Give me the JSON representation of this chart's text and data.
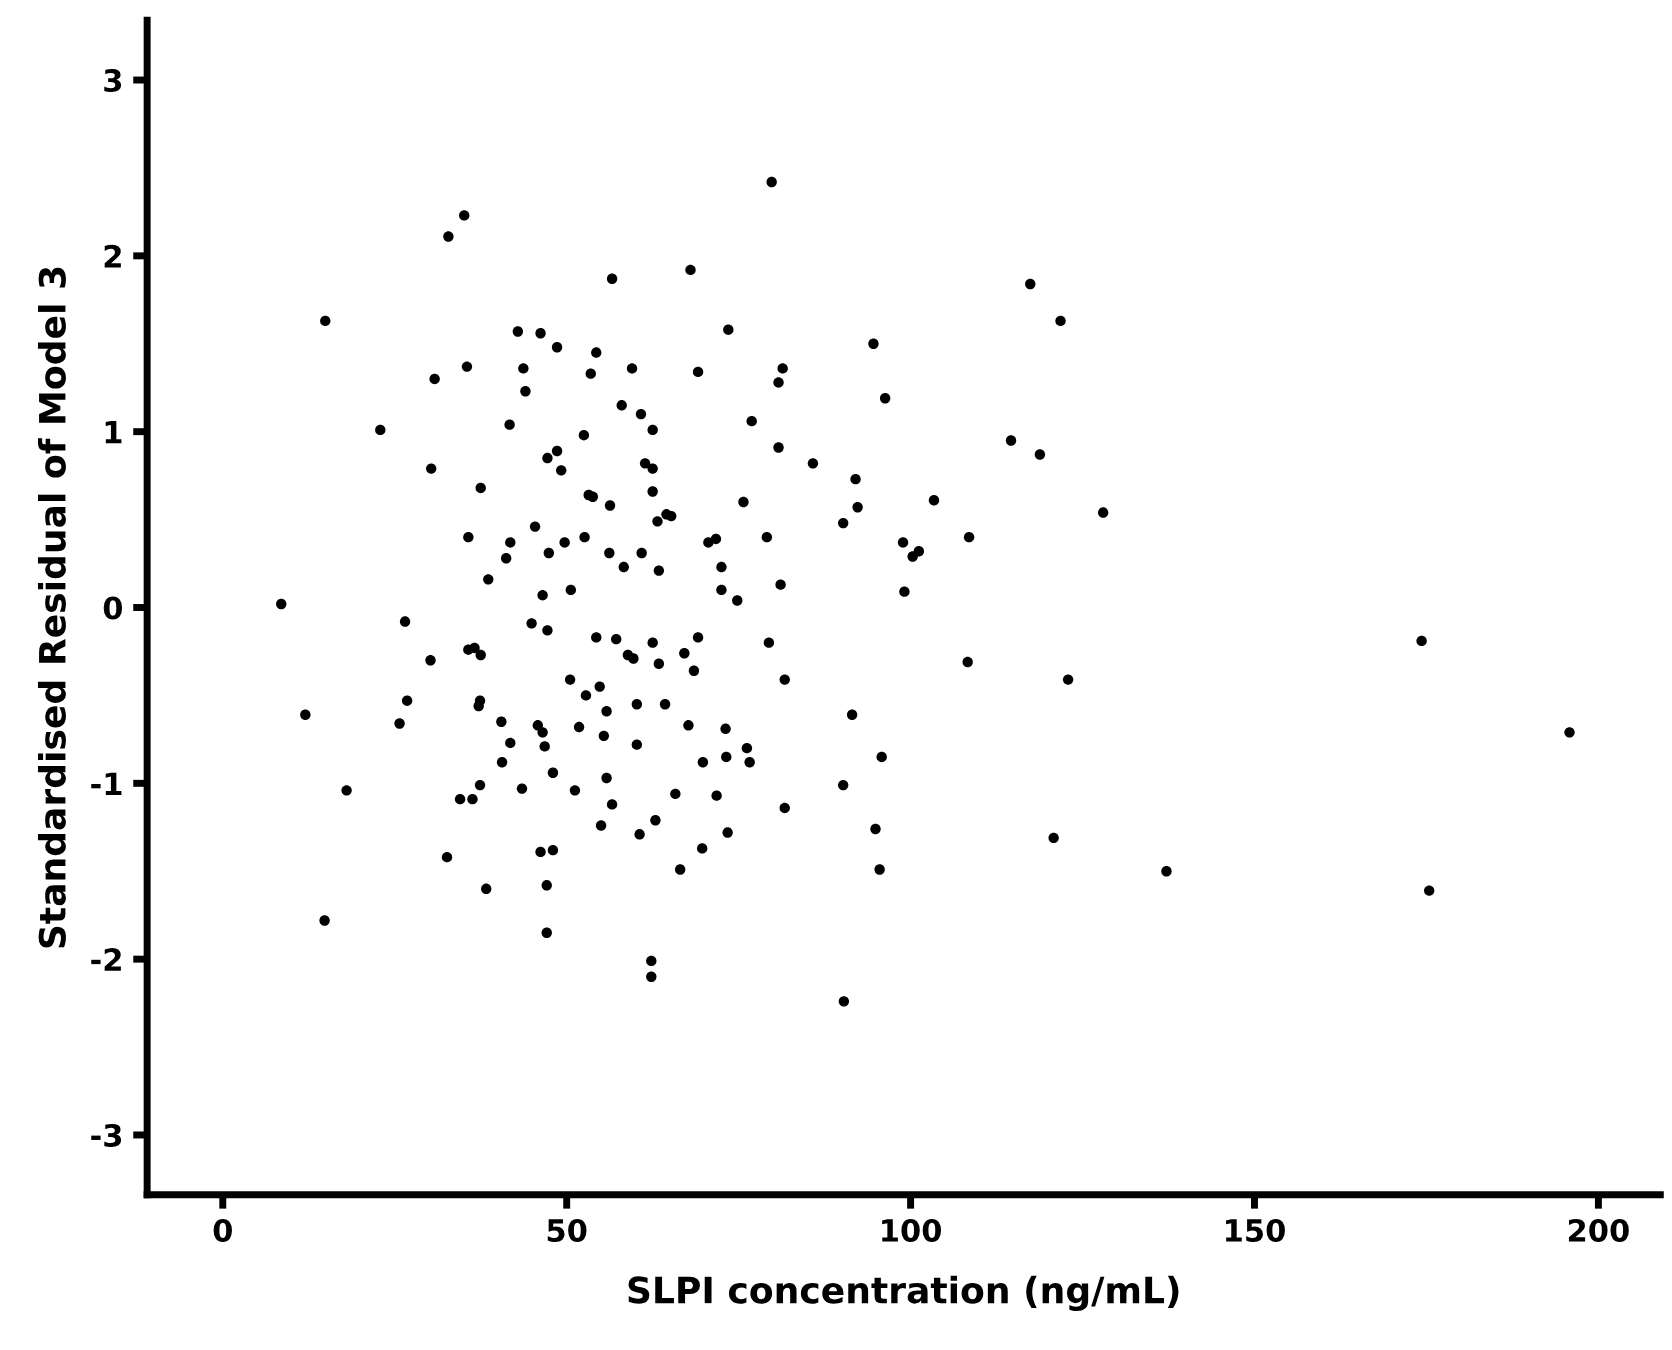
{
  "chart_data": {
    "type": "scatter",
    "xlabel": "SLPI concentration (ng/mL)",
    "ylabel": "Standardised Residual of Model 3",
    "xlim": [
      -11,
      209
    ],
    "ylim": [
      -3.34,
      3.34
    ],
    "xticks": [
      0,
      50,
      100,
      150,
      200
    ],
    "yticks": [
      -3,
      -2,
      -1,
      0,
      1,
      2,
      3
    ],
    "grid": false,
    "legend": false,
    "marker": "circle",
    "series": [
      {
        "color": "#000000",
        "x": [
          8.5,
          12.0,
          14.9,
          14.8,
          18.0,
          22.9,
          26.5,
          26.8,
          25.7,
          30.2,
          30.3,
          30.8,
          32.6,
          32.8,
          35.1,
          34.5,
          36.3,
          35.5,
          35.7,
          37.5,
          35.7,
          36.6,
          37.5,
          37.4,
          37.2,
          37.4,
          38.3,
          38.6,
          40.5,
          40.6,
          41.7,
          41.8,
          41.8,
          41.2,
          42.9,
          43.7,
          44.0,
          43.5,
          44.9,
          45.4,
          46.2,
          45.8,
          46.5,
          46.8,
          46.5,
          47.2,
          47.2,
          47.4,
          47.1,
          47.1,
          46.2,
          48.0,
          48.0,
          48.6,
          48.6,
          49.2,
          49.7,
          50.6,
          50.5,
          51.2,
          51.8,
          52.5,
          52.6,
          52.8,
          53.2,
          53.8,
          53.5,
          54.3,
          54.3,
          54.8,
          55.0,
          55.4,
          55.8,
          56.2,
          56.3,
          55.8,
          56.6,
          56.6,
          57.2,
          58.0,
          58.3,
          58.9,
          59.7,
          59.5,
          60.2,
          60.2,
          60.9,
          60.6,
          60.8,
          61.4,
          62.5,
          62.5,
          62.5,
          62.5,
          62.9,
          62.3,
          62.3,
          63.4,
          63.4,
          63.2,
          64.5,
          64.3,
          65.2,
          65.8,
          66.5,
          67.1,
          67.7,
          68.0,
          68.5,
          69.1,
          69.1,
          69.7,
          69.8,
          70.6,
          71.7,
          71.8,
          72.5,
          72.5,
          73.1,
          73.4,
          73.5,
          73.2,
          74.8,
          75.7,
          76.2,
          76.6,
          76.9,
          79.1,
          79.4,
          79.8,
          80.8,
          80.8,
          81.4,
          81.1,
          81.7,
          81.7,
          85.8,
          90.2,
          90.2,
          90.3,
          91.5,
          92.0,
          92.3,
          94.6,
          94.9,
          95.5,
          95.8,
          96.3,
          98.9,
          99.1,
          100.3,
          101.2,
          103.4,
          108.3,
          108.5,
          114.6,
          117.4,
          118.8,
          120.8,
          121.8,
          122.9,
          128.0,
          137.2,
          174.3,
          175.4,
          195.8
        ],
        "values": [
          0.02,
          -0.61,
          1.63,
          -1.78,
          -1.04,
          1.01,
          -0.08,
          -0.53,
          -0.66,
          -0.3,
          0.79,
          1.3,
          -1.42,
          2.11,
          2.23,
          -1.09,
          -1.09,
          1.37,
          0.4,
          0.68,
          -0.24,
          -0.23,
          -0.27,
          -0.53,
          -0.56,
          -1.01,
          -1.6,
          0.16,
          -0.65,
          -0.88,
          1.04,
          -0.77,
          0.37,
          0.28,
          1.57,
          1.36,
          1.23,
          -1.03,
          -0.09,
          0.46,
          1.56,
          -0.67,
          -0.71,
          -0.79,
          0.07,
          -0.13,
          0.85,
          0.31,
          -1.58,
          -1.85,
          -1.39,
          -1.38,
          -0.94,
          1.48,
          0.89,
          0.78,
          0.37,
          0.1,
          -0.41,
          -1.04,
          -0.68,
          0.98,
          0.4,
          -0.5,
          0.64,
          0.63,
          1.33,
          1.45,
          -0.17,
          -0.45,
          -1.24,
          -0.73,
          -0.59,
          0.31,
          0.58,
          -0.97,
          1.87,
          -1.12,
          -0.18,
          1.15,
          0.23,
          -0.27,
          -0.29,
          1.36,
          -0.55,
          -0.78,
          0.31,
          -1.29,
          1.1,
          0.82,
          1.01,
          0.79,
          0.66,
          -0.2,
          -1.21,
          -2.01,
          -2.1,
          0.21,
          -0.32,
          0.49,
          0.53,
          -0.55,
          0.52,
          -1.06,
          -1.49,
          -0.26,
          -0.67,
          1.92,
          -0.36,
          1.34,
          -0.17,
          -1.37,
          -0.88,
          0.37,
          0.39,
          -1.07,
          0.23,
          0.1,
          -0.69,
          -1.28,
          1.58,
          -0.85,
          0.04,
          0.6,
          -0.8,
          -0.88,
          1.06,
          0.4,
          -0.2,
          2.42,
          0.91,
          1.28,
          1.36,
          0.13,
          -0.41,
          -1.14,
          0.82,
          0.48,
          -1.01,
          -2.24,
          -0.61,
          0.73,
          0.57,
          1.5,
          -1.26,
          -1.49,
          -0.85,
          1.19,
          0.37,
          0.09,
          0.29,
          0.32,
          0.61,
          -0.31,
          0.4,
          0.95,
          1.84,
          0.87,
          -1.31,
          1.63,
          -0.41,
          0.54,
          -1.5,
          -0.19,
          -1.61,
          -0.71
        ]
      }
    ]
  }
}
